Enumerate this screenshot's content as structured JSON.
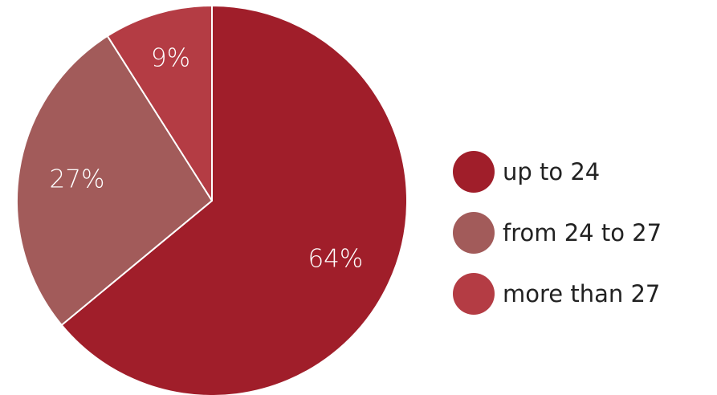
{
  "chart_data": {
    "type": "pie",
    "categories": [
      "up to 24",
      "from 24 to 27",
      "more than 27"
    ],
    "values": [
      64,
      27,
      9
    ],
    "value_labels": [
      "64%",
      "27%",
      "9%"
    ],
    "colors": [
      "#a01e2a",
      "#a25b5a",
      "#b43c44"
    ],
    "start_angle": "12 o'clock",
    "direction": "clockwise",
    "legend_position": "right"
  }
}
